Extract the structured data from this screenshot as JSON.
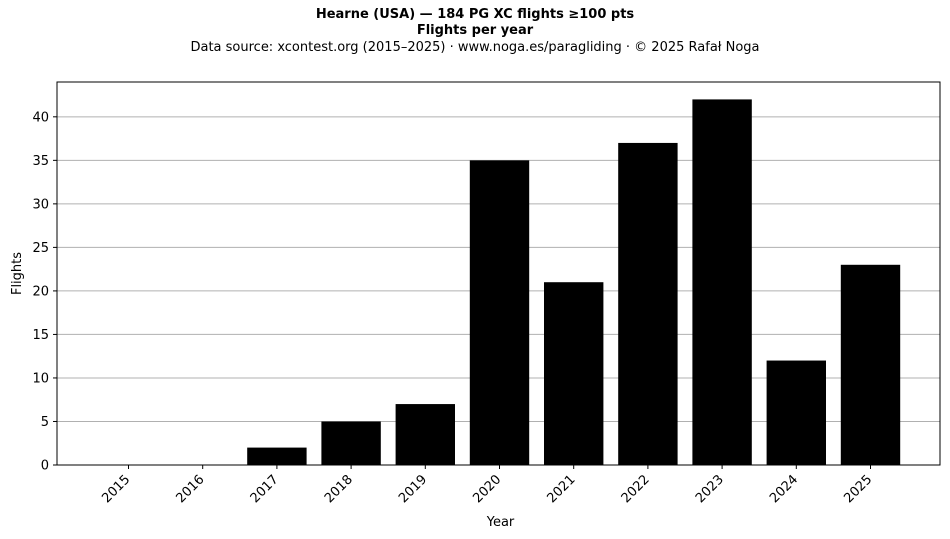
{
  "chart_data": {
    "type": "bar",
    "title": "Hearne (USA)  —  184 PG XC flights ≥100 pts",
    "subtitle": "Flights per year",
    "source_note": "Data source: xcontest.org (2015–2025)  ·  www.noga.es/paragliding  ·  © 2025 Rafał Noga",
    "xlabel": "Year",
    "ylabel": "Flights",
    "categories": [
      "2015",
      "2016",
      "2017",
      "2018",
      "2019",
      "2020",
      "2021",
      "2022",
      "2023",
      "2024",
      "2025"
    ],
    "values": [
      0,
      0,
      2,
      5,
      7,
      35,
      21,
      37,
      42,
      12,
      23
    ],
    "ylim": [
      0,
      44
    ],
    "yticks": [
      0,
      5,
      10,
      15,
      20,
      25,
      30,
      35,
      40
    ],
    "grid": "y-axis major",
    "bar_color": "#000000",
    "grid_color": "#b0b0b0"
  }
}
